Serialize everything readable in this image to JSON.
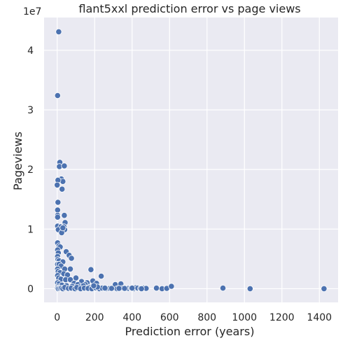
{
  "chart_data": {
    "type": "scatter",
    "title": "flant5xxl prediction error vs page views",
    "xlabel": "Prediction error (years)",
    "ylabel": "Pageviews",
    "y_offset_label": "1e7",
    "xlim": [
      -70,
      1500
    ],
    "ylim": [
      -2300000,
      45500000
    ],
    "x_ticks": [
      0,
      200,
      400,
      600,
      800,
      1000,
      1200,
      1400
    ],
    "x_tick_labels": [
      "0",
      "200",
      "400",
      "600",
      "800",
      "1000",
      "1200",
      "1400"
    ],
    "y_ticks": [
      0,
      10000000,
      20000000,
      30000000,
      40000000
    ],
    "y_tick_labels": [
      "0",
      "1",
      "2",
      "3",
      "4"
    ],
    "grid": true,
    "background": "#eaeaf2",
    "point_color": "#4c72b0",
    "points": [
      [
        8,
        43100000
      ],
      [
        2,
        32400000
      ],
      [
        14,
        21200000
      ],
      [
        12,
        20500000
      ],
      [
        38,
        20600000
      ],
      [
        22,
        18400000
      ],
      [
        30,
        18000000
      ],
      [
        4,
        18200000
      ],
      [
        0,
        17400000
      ],
      [
        26,
        16700000
      ],
      [
        4,
        14500000
      ],
      [
        2,
        13200000
      ],
      [
        2,
        12300000
      ],
      [
        2,
        12000000
      ],
      [
        38,
        12300000
      ],
      [
        42,
        11100000
      ],
      [
        2,
        10500000
      ],
      [
        20,
        10400000
      ],
      [
        36,
        10400000
      ],
      [
        40,
        9900000
      ],
      [
        6,
        9900000
      ],
      [
        24,
        9400000
      ],
      [
        30,
        10200000
      ],
      [
        2,
        7700000
      ],
      [
        10,
        7200000
      ],
      [
        16,
        7000000
      ],
      [
        2,
        6500000
      ],
      [
        6,
        6000000
      ],
      [
        48,
        6200000
      ],
      [
        64,
        5600000
      ],
      [
        76,
        5100000
      ],
      [
        2,
        5400000
      ],
      [
        4,
        4900000
      ],
      [
        10,
        4700000
      ],
      [
        30,
        4500000
      ],
      [
        2,
        4100000
      ],
      [
        10,
        4100000
      ],
      [
        20,
        3800000
      ],
      [
        40,
        3300000
      ],
      [
        70,
        3300000
      ],
      [
        2,
        3300000
      ],
      [
        5,
        2900000
      ],
      [
        15,
        2700000
      ],
      [
        35,
        2500000
      ],
      [
        55,
        2300000
      ],
      [
        2,
        2200000
      ],
      [
        8,
        1800000
      ],
      [
        20,
        1600000
      ],
      [
        45,
        1500000
      ],
      [
        70,
        1500000
      ],
      [
        100,
        1800000
      ],
      [
        130,
        1200000
      ],
      [
        160,
        1000000
      ],
      [
        190,
        1300000
      ],
      [
        210,
        900000
      ],
      [
        90,
        900000
      ],
      [
        110,
        700000
      ],
      [
        150,
        700000
      ],
      [
        180,
        3200000
      ],
      [
        235,
        2100000
      ],
      [
        2,
        1000000
      ],
      [
        10,
        800000
      ],
      [
        25,
        600000
      ],
      [
        50,
        500000
      ],
      [
        80,
        400000
      ],
      [
        120,
        300000
      ],
      [
        140,
        500000
      ],
      [
        170,
        200000
      ],
      [
        200,
        400000
      ],
      [
        2,
        300000
      ],
      [
        2,
        100000
      ],
      [
        6,
        0
      ],
      [
        14,
        50000
      ],
      [
        22,
        100000
      ],
      [
        30,
        0
      ],
      [
        40,
        200000
      ],
      [
        60,
        50000
      ],
      [
        75,
        100000
      ],
      [
        95,
        0
      ],
      [
        105,
        200000
      ],
      [
        125,
        0
      ],
      [
        145,
        100000
      ],
      [
        165,
        50000
      ],
      [
        185,
        0
      ],
      [
        205,
        150000
      ],
      [
        225,
        0
      ],
      [
        240,
        100000
      ],
      [
        260,
        0
      ],
      [
        280,
        50000
      ],
      [
        300,
        100000
      ],
      [
        310,
        700000
      ],
      [
        320,
        0
      ],
      [
        340,
        800000
      ],
      [
        350,
        100000
      ],
      [
        365,
        0
      ],
      [
        380,
        50000
      ],
      [
        395,
        100000
      ],
      [
        410,
        0
      ],
      [
        420,
        150000
      ],
      [
        430,
        100000
      ],
      [
        445,
        50000
      ],
      [
        460,
        100000
      ],
      [
        475,
        50000
      ],
      [
        530,
        100000
      ],
      [
        560,
        0
      ],
      [
        585,
        50000
      ],
      [
        610,
        400000
      ],
      [
        885,
        100000
      ],
      [
        1030,
        0
      ],
      [
        1425,
        0
      ],
      [
        255,
        100000
      ],
      [
        290,
        50000
      ],
      [
        330,
        50000
      ],
      [
        360,
        50000
      ],
      [
        400,
        100000
      ],
      [
        450,
        0
      ],
      [
        215,
        300000
      ],
      [
        195,
        500000
      ]
    ]
  }
}
